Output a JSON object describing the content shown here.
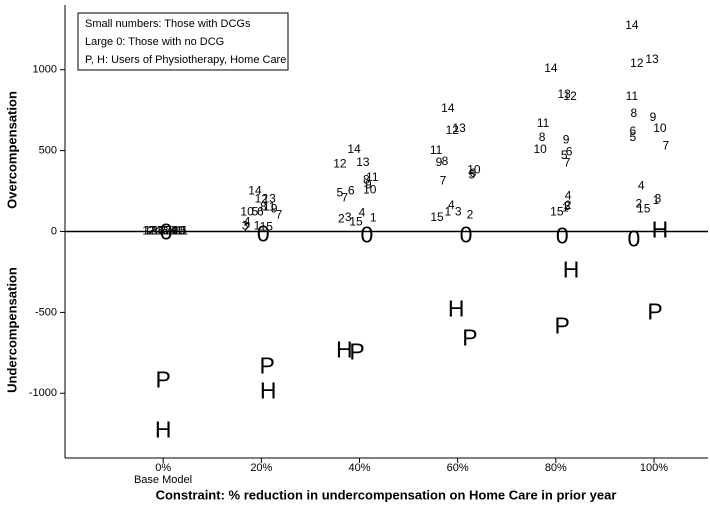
{
  "chart_data": {
    "type": "scatter",
    "xlabel": "Constraint: % reduction in undercompensation on Home Care in prior year",
    "ylabel_top": "Overcompensation",
    "ylabel_bottom": "Undercompensation",
    "annotations": [
      "Base Model"
    ],
    "legend_text": [
      "Small numbers: Those with DCGs",
      "Large 0: Those with no DCG",
      "P, H: Users of Physiotherapy, Home Care"
    ],
    "xlim": [
      -20,
      111
    ],
    "ylim": [
      -1400,
      1400
    ],
    "xticks": [
      {
        "value": 0,
        "label": "0%"
      },
      {
        "value": 20,
        "label": "20%"
      },
      {
        "value": 40,
        "label": "40%"
      },
      {
        "value": 60,
        "label": "60%"
      },
      {
        "value": 80,
        "label": "80%"
      },
      {
        "value": 100,
        "label": "100%"
      }
    ],
    "yticks": [
      -1000,
      -500,
      0,
      500,
      1000
    ],
    "series": [
      {
        "color": "#000000",
        "labels": [
          "1",
          "2",
          "3",
          "4",
          "5",
          "6",
          "7",
          "8",
          "9",
          "10",
          "11",
          "12",
          "13",
          "14",
          "15",
          "14",
          "12",
          "13",
          "8",
          "11",
          "10",
          "5",
          "6",
          "9",
          "7",
          "4",
          "3",
          "1",
          "15",
          "2",
          "14",
          "12",
          "13",
          "11",
          "8",
          "9",
          "10",
          "5",
          "6",
          "7",
          "4",
          "2",
          "3",
          "15",
          "1",
          "14",
          "12",
          "13",
          "11",
          "9",
          "8",
          "10",
          "6",
          "5",
          "7",
          "4",
          "1",
          "15",
          "3",
          "2",
          "14",
          "13",
          "12",
          "11",
          "8",
          "9",
          "10",
          "6",
          "5",
          "7",
          "4",
          "3",
          "1",
          "15",
          "2",
          "14",
          "13",
          "12",
          "11",
          "9",
          "8",
          "10",
          "6",
          "5",
          "7",
          "4",
          "1",
          "3",
          "2",
          "15"
        ],
        "x": [
          -3.2,
          -2.5,
          -1.8,
          -1.1,
          -0.4,
          0.3,
          1,
          1.7,
          2.4,
          3.1,
          3.8,
          -2.9,
          -0.8,
          1.4,
          3.4,
          18.7,
          20,
          21.6,
          20.4,
          21.6,
          17.1,
          18.7,
          19.8,
          22.6,
          23.6,
          17.1,
          16.7,
          19.1,
          21,
          17.1,
          38.9,
          36,
          40.7,
          42.6,
          41.4,
          41.8,
          42.1,
          36,
          38.3,
          37,
          40.5,
          36.3,
          37.7,
          39.3,
          42.8,
          58,
          58.9,
          60.3,
          55.6,
          56.2,
          57.4,
          63.3,
          63.1,
          62.9,
          57,
          58.7,
          58,
          55.8,
          60.1,
          62.5,
          79,
          81.7,
          82.9,
          77.4,
          77.2,
          82.1,
          76.8,
          82.7,
          81.7,
          82.3,
          82.5,
          82.3,
          81.9,
          80.2,
          82.5,
          95.5,
          99.6,
          96.5,
          95.5,
          99.8,
          95.9,
          101.2,
          95.7,
          95.7,
          102.4,
          97.4,
          100.4,
          100.8,
          96.9,
          97.9
        ],
        "values": [
          0,
          0,
          0,
          0,
          0,
          0,
          0,
          0,
          0,
          0,
          0,
          0,
          0,
          0,
          0,
          247,
          198,
          198,
          148,
          148,
          117,
          117,
          117,
          136,
          99,
          56,
          31,
          31,
          25,
          19,
          506,
          414,
          426,
          333,
          315,
          284,
          253,
          235,
          247,
          204,
          111,
          74,
          86,
          56,
          80,
          759,
          623,
          636,
          500,
          426,
          432,
          377,
          358,
          346,
          309,
          160,
          117,
          86,
          117,
          99,
          1006,
          846,
          833,
          667,
          580,
          562,
          506,
          488,
          469,
          420,
          216,
          154,
          142,
          117,
          160,
          1272,
          1062,
          1037,
          833,
          704,
          728,
          636,
          617,
          580,
          525,
          278,
          191,
          198,
          167,
          136
        ]
      },
      {
        "color": "#000000",
        "labels": [
          "0",
          "0",
          "0",
          "0",
          "0",
          "0"
        ],
        "x": [
          0.6,
          20.4,
          41.5,
          61.7,
          81.3,
          95.9
        ],
        "values": [
          -12,
          -25,
          -31,
          -31,
          -37,
          -56
        ]
      },
      {
        "color": "#000000",
        "labels": [
          "P",
          "P",
          "P",
          "P",
          "P",
          "P"
        ],
        "x": [
          0,
          21.2,
          39.5,
          62.5,
          81.3,
          100.2
        ],
        "values": [
          -926,
          -840,
          -753,
          -667,
          -593,
          -506
        ]
      },
      {
        "color": "#000000",
        "labels": [
          "H",
          "H",
          "H",
          "H",
          "H",
          "H"
        ],
        "x": [
          0,
          21.4,
          36.9,
          59.7,
          83.1,
          101.2
        ],
        "values": [
          -1235,
          -994,
          -741,
          -488,
          -247,
          0
        ]
      }
    ]
  }
}
